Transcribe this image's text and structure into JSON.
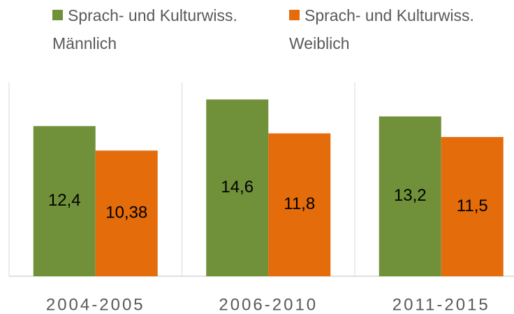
{
  "chart_data": {
    "type": "bar",
    "categories": [
      "2004-2005",
      "2006-2010",
      "2011-2015"
    ],
    "series": [
      {
        "name": "Sprach- und Kulturwiss. Männlich",
        "color": "#70913a",
        "values": [
          12.4,
          14.6,
          13.2
        ],
        "value_labels": [
          "12,4",
          "14,6",
          "13,2"
        ]
      },
      {
        "name": "Sprach- und Kulturwiss. Weiblich",
        "color": "#e46c0a",
        "values": [
          10.38,
          11.8,
          11.5
        ],
        "value_labels": [
          "10,38",
          "11,8",
          "11,5"
        ]
      }
    ],
    "ylim": [
      0,
      16
    ],
    "legend": "top"
  }
}
